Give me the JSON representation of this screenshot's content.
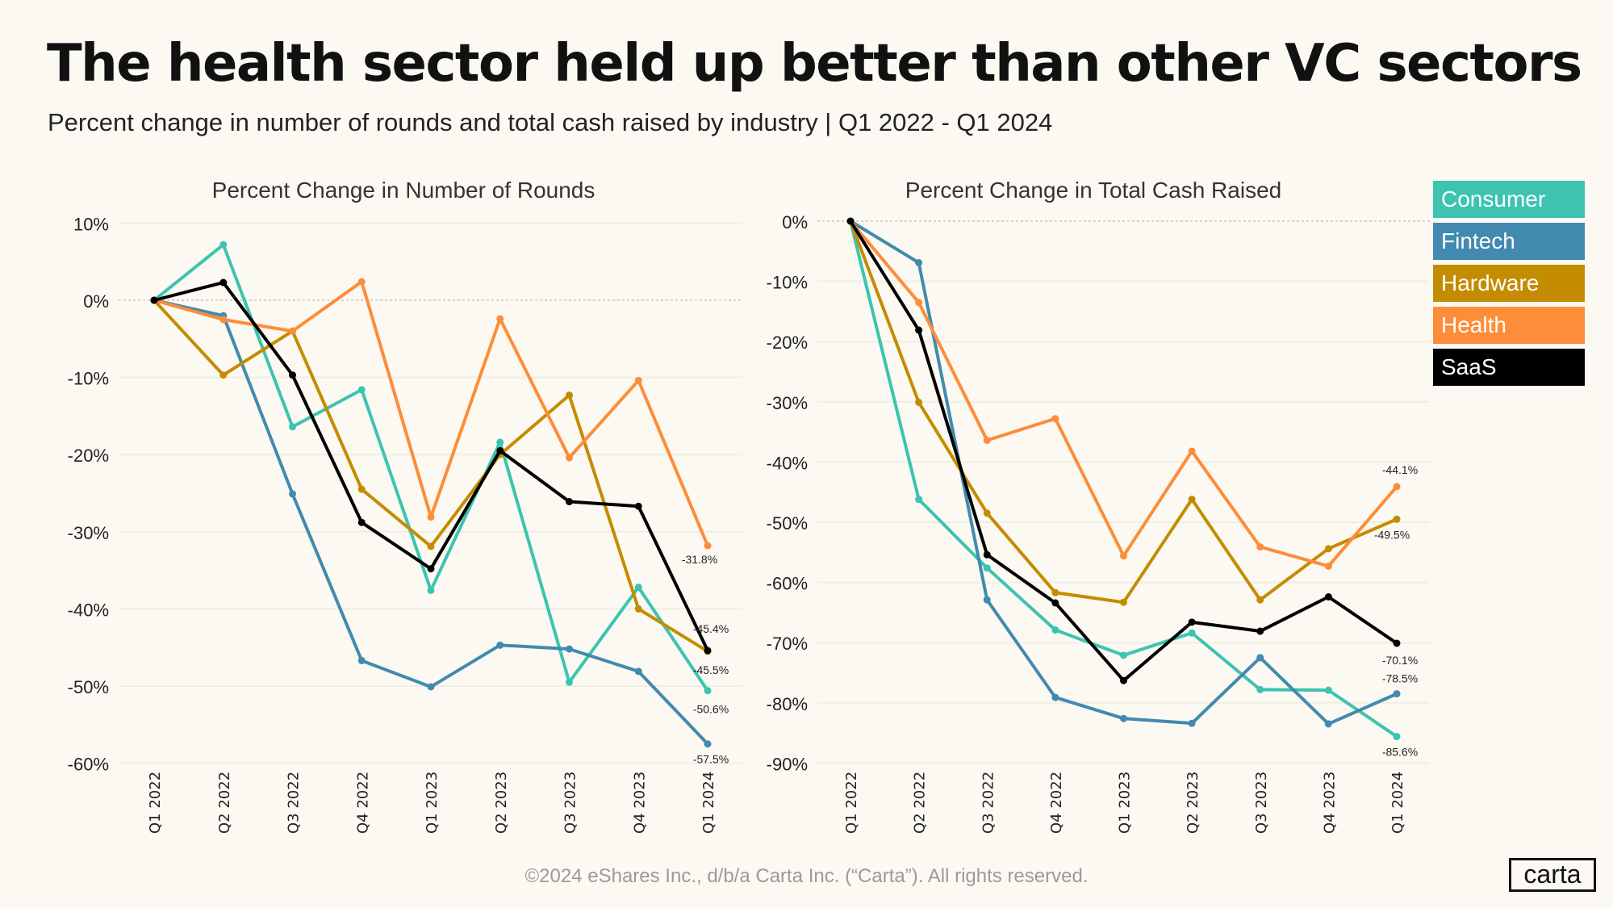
{
  "header": {
    "title": "The health sector held up better than other VC sectors",
    "subtitle": "Percent change in number of rounds and total cash raised by industry | Q1 2022 - Q1 2024"
  },
  "legend": [
    {
      "name": "Consumer",
      "color": "#3cc4b0"
    },
    {
      "name": "Fintech",
      "color": "#428aaf"
    },
    {
      "name": "Hardware",
      "color": "#c48c00"
    },
    {
      "name": "Health",
      "color": "#fd8d38"
    },
    {
      "name": "SaaS",
      "color": "#000000"
    }
  ],
  "chart_data": [
    {
      "type": "line",
      "title": "Percent Change in Number of Rounds",
      "categories": [
        "Q1 2022",
        "Q2 2022",
        "Q3 2022",
        "Q4 2022",
        "Q1 2023",
        "Q2 2023",
        "Q3 2023",
        "Q4 2023",
        "Q1 2024"
      ],
      "yticks": [
        "10%",
        "0%",
        "-10%",
        "-20%",
        "-30%",
        "-40%",
        "-50%",
        "-60%"
      ],
      "ylim": [
        -60,
        10
      ],
      "series": [
        {
          "name": "Consumer",
          "values": [
            0,
            7.2,
            -16.4,
            -11.6,
            -37.6,
            -18.4,
            -49.5,
            -37.2,
            -50.6
          ],
          "end_label": "-50.6%"
        },
        {
          "name": "Fintech",
          "values": [
            0,
            -2.0,
            -25.1,
            -46.7,
            -50.1,
            -44.7,
            -45.2,
            -48.1,
            -57.5
          ],
          "end_label": "-57.5%"
        },
        {
          "name": "Hardware",
          "values": [
            0,
            -9.7,
            -4.0,
            -24.5,
            -31.9,
            -20.0,
            -12.3,
            -40.0,
            -45.5
          ],
          "end_label": "-45.5%"
        },
        {
          "name": "Health",
          "values": [
            0,
            -2.5,
            -4.0,
            2.4,
            -28.1,
            -2.4,
            -20.4,
            -10.4,
            -31.8
          ],
          "end_label": "-31.8%"
        },
        {
          "name": "SaaS",
          "values": [
            0,
            2.3,
            -9.7,
            -28.8,
            -34.8,
            -19.5,
            -26.1,
            -26.7,
            -45.4
          ],
          "end_label": "-45.4%"
        }
      ]
    },
    {
      "type": "line",
      "title": "Percent Change in Total Cash Raised",
      "categories": [
        "Q1 2022",
        "Q2 2022",
        "Q3 2022",
        "Q4 2022",
        "Q1 2023",
        "Q2 2023",
        "Q3 2023",
        "Q4 2023",
        "Q1 2024"
      ],
      "yticks": [
        "0%",
        "-10%",
        "-20%",
        "-30%",
        "-40%",
        "-50%",
        "-60%",
        "-70%",
        "-80%",
        "-90%"
      ],
      "ylim": [
        -90,
        0
      ],
      "series": [
        {
          "name": "Consumer",
          "values": [
            0,
            -46.2,
            -57.6,
            -67.9,
            -72.1,
            -68.4,
            -77.8,
            -77.9,
            -85.6
          ],
          "end_label": "-85.6%"
        },
        {
          "name": "Fintech",
          "values": [
            0,
            -6.9,
            -62.9,
            -79.1,
            -82.6,
            -83.4,
            -72.5,
            -83.5,
            -78.5
          ],
          "end_label": "-78.5%"
        },
        {
          "name": "Hardware",
          "values": [
            0,
            -30.1,
            -48.5,
            -61.7,
            -63.3,
            -46.2,
            -62.9,
            -54.4,
            -49.5
          ],
          "end_label": "-49.5%"
        },
        {
          "name": "Health",
          "values": [
            0,
            -13.5,
            -36.4,
            -32.8,
            -55.6,
            -38.2,
            -54.1,
            -57.3,
            -44.1
          ],
          "end_label": "-44.1%"
        },
        {
          "name": "SaaS",
          "values": [
            0,
            -18.1,
            -55.4,
            -63.4,
            -76.3,
            -66.6,
            -68.1,
            -62.4,
            -70.1
          ],
          "end_label": "-70.1%"
        }
      ]
    }
  ],
  "footer": {
    "copyright": "©2024 eShares Inc., d/b/a Carta Inc. (“Carta”). All rights reserved.",
    "logo": "carta"
  }
}
